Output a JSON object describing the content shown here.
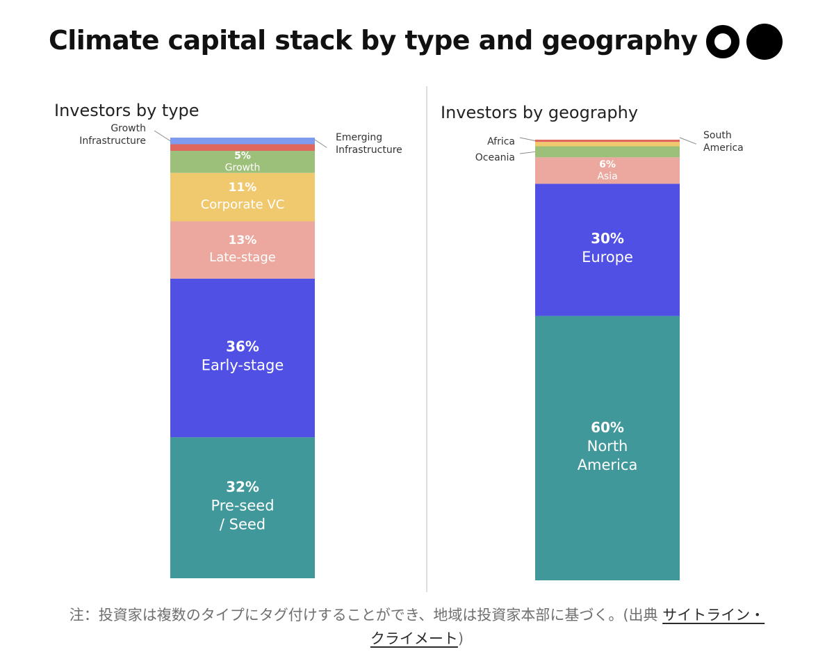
{
  "title": "Climate capital stack by type and geography",
  "logo": {
    "icon": "two-circles-logo-icon"
  },
  "chart_data": [
    {
      "type": "bar",
      "stacked": true,
      "title": "Investors by type",
      "unit": "%",
      "segments": [
        {
          "name": "Pre-seed / Seed",
          "label_lines": [
            "Pre-seed",
            "/ Seed"
          ],
          "value": 32,
          "value_label": "32%",
          "color": "#41989a",
          "label_position": "inside"
        },
        {
          "name": "Early-stage",
          "label_lines": [
            "Early-stage"
          ],
          "value": 36,
          "value_label": "36%",
          "color": "#5050e4",
          "label_position": "inside"
        },
        {
          "name": "Late-stage",
          "label_lines": [
            "Late-stage"
          ],
          "value": 13,
          "value_label": "13%",
          "color": "#eca89e",
          "label_position": "inside"
        },
        {
          "name": "Corporate VC",
          "label_lines": [
            "Corporate VC"
          ],
          "value": 11,
          "value_label": "11%",
          "color": "#f0c86e",
          "label_position": "inside"
        },
        {
          "name": "Growth",
          "label_lines": [
            "Growth"
          ],
          "value": 5,
          "value_label": "5%",
          "color": "#9cc07a",
          "label_position": "inside"
        },
        {
          "name": "Emerging Infrastructure",
          "label_lines": [
            "Emerging",
            "Infrastructure"
          ],
          "value": 1.5,
          "value_label": "",
          "color": "#e0675e",
          "label_position": "right"
        },
        {
          "name": "Growth Infrastructure",
          "label_lines": [
            "Growth",
            "Infrastructure"
          ],
          "value": 1.5,
          "value_label": "",
          "color": "#7e9bf0",
          "label_position": "left"
        }
      ]
    },
    {
      "type": "bar",
      "stacked": true,
      "title": "Investors by geography",
      "unit": "%",
      "segments": [
        {
          "name": "North America",
          "label_lines": [
            "North",
            "America"
          ],
          "value": 60,
          "value_label": "60%",
          "color": "#41989a",
          "label_position": "inside"
        },
        {
          "name": "Europe",
          "label_lines": [
            "Europe"
          ],
          "value": 30,
          "value_label": "30%",
          "color": "#5050e4",
          "label_position": "inside"
        },
        {
          "name": "Asia",
          "label_lines": [
            "Asia"
          ],
          "value": 6,
          "value_label": "6%",
          "color": "#eca89e",
          "label_position": "inside"
        },
        {
          "name": "Oceania",
          "label_lines": [
            "Oceania"
          ],
          "value": 2.5,
          "value_label": "",
          "color": "#9cc07a",
          "label_position": "left"
        },
        {
          "name": "South America",
          "label_lines": [
            "South",
            "America"
          ],
          "value": 1,
          "value_label": "",
          "color": "#f0c86e",
          "label_position": "right"
        },
        {
          "name": "Africa",
          "label_lines": [
            "Africa"
          ],
          "value": 0.5,
          "value_label": "",
          "color": "#e0675e",
          "label_position": "left"
        }
      ]
    }
  ],
  "footer": {
    "note": "注：投資家は複数のタイプにタグ付けすることができ、地域は投資家本部に基づく。(出典 ",
    "link_part1": "サイトライン・",
    "link_part2": "クライメート",
    "close": ")"
  }
}
